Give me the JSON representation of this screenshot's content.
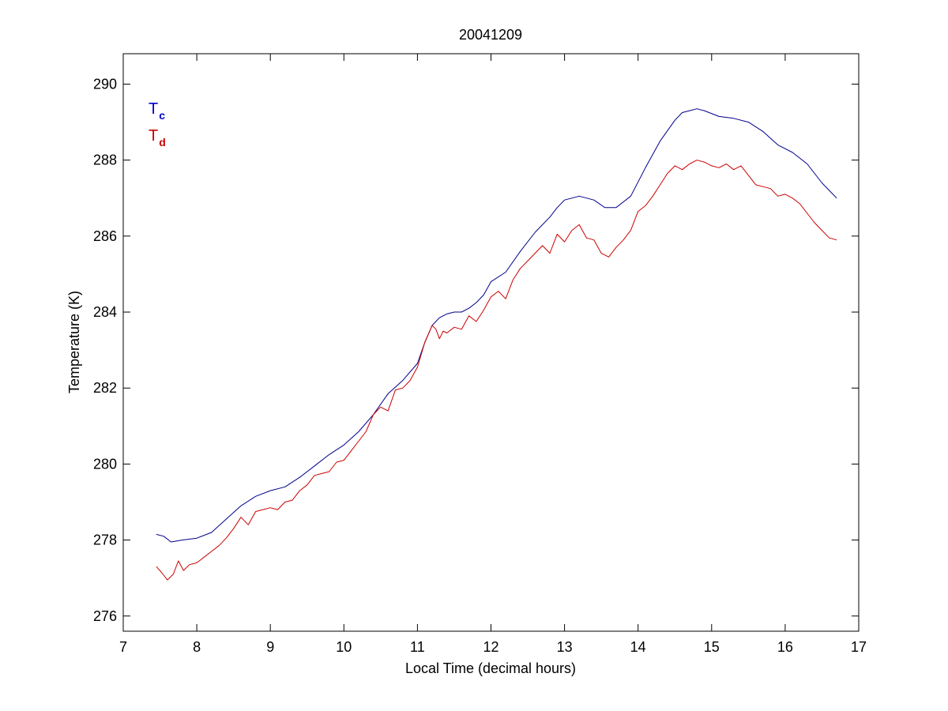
{
  "chart_data": {
    "type": "line",
    "title": "20041209",
    "xlabel": "Local Time (decimal hours)",
    "ylabel": "Temperature (K)",
    "xlim": [
      7,
      17
    ],
    "ylim": [
      275.6,
      290.8
    ],
    "xticks": [
      7,
      8,
      9,
      10,
      11,
      12,
      13,
      14,
      15,
      16,
      17
    ],
    "yticks": [
      276,
      278,
      280,
      282,
      284,
      286,
      288,
      290
    ],
    "grid": false,
    "legend": {
      "placement": "top-left",
      "entries": [
        {
          "main": "T",
          "sub": "c",
          "color": "#0000cc"
        },
        {
          "main": "T",
          "sub": "d",
          "color": "#cc0000"
        }
      ]
    },
    "series": [
      {
        "color": "#00008b",
        "x": [
          7.45,
          7.55,
          7.65,
          7.8,
          8.0,
          8.2,
          8.4,
          8.6,
          8.8,
          9.0,
          9.2,
          9.4,
          9.6,
          9.8,
          10.0,
          10.2,
          10.4,
          10.6,
          10.8,
          11.0,
          11.1,
          11.2,
          11.3,
          11.4,
          11.5,
          11.6,
          11.7,
          11.8,
          11.9,
          12.0,
          12.2,
          12.4,
          12.6,
          12.8,
          12.9,
          13.0,
          13.2,
          13.4,
          13.55,
          13.7,
          13.9,
          14.1,
          14.3,
          14.5,
          14.6,
          14.7,
          14.8,
          14.9,
          15.1,
          15.3,
          15.5,
          15.7,
          15.9,
          16.1,
          16.3,
          16.5,
          16.7
        ],
        "y": [
          278.15,
          278.1,
          277.95,
          278.0,
          278.05,
          278.2,
          278.55,
          278.9,
          279.15,
          279.3,
          279.4,
          279.65,
          279.95,
          280.25,
          280.5,
          280.85,
          281.3,
          281.85,
          282.2,
          282.65,
          283.2,
          283.65,
          283.85,
          283.95,
          284.0,
          284.0,
          284.1,
          284.25,
          284.45,
          284.8,
          285.05,
          285.6,
          286.1,
          286.5,
          286.75,
          286.95,
          287.05,
          286.95,
          286.75,
          286.75,
          287.05,
          287.8,
          288.5,
          289.05,
          289.25,
          289.3,
          289.35,
          289.3,
          289.15,
          289.1,
          289.0,
          288.75,
          288.4,
          288.2,
          287.9,
          287.4,
          287.0
        ]
      },
      {
        "color": "#cc0000",
        "x": [
          7.45,
          7.52,
          7.6,
          7.68,
          7.75,
          7.82,
          7.9,
          8.0,
          8.1,
          8.2,
          8.3,
          8.4,
          8.5,
          8.6,
          8.7,
          8.8,
          8.9,
          9.0,
          9.1,
          9.2,
          9.3,
          9.4,
          9.5,
          9.6,
          9.7,
          9.8,
          9.9,
          10.0,
          10.1,
          10.2,
          10.3,
          10.4,
          10.5,
          10.6,
          10.7,
          10.8,
          10.9,
          11.0,
          11.1,
          11.2,
          11.25,
          11.3,
          11.35,
          11.4,
          11.5,
          11.6,
          11.7,
          11.8,
          11.9,
          12.0,
          12.1,
          12.2,
          12.3,
          12.4,
          12.5,
          12.6,
          12.7,
          12.8,
          12.9,
          13.0,
          13.1,
          13.2,
          13.3,
          13.4,
          13.5,
          13.6,
          13.7,
          13.8,
          13.9,
          14.0,
          14.1,
          14.2,
          14.3,
          14.4,
          14.5,
          14.6,
          14.7,
          14.8,
          14.9,
          15.0,
          15.1,
          15.2,
          15.3,
          15.4,
          15.5,
          15.6,
          15.7,
          15.8,
          15.9,
          16.0,
          16.1,
          16.2,
          16.3,
          16.4,
          16.5,
          16.6,
          16.7
        ],
        "y": [
          277.3,
          277.15,
          276.95,
          277.1,
          277.45,
          277.2,
          277.35,
          277.4,
          277.55,
          277.7,
          277.85,
          278.05,
          278.3,
          278.6,
          278.4,
          278.75,
          278.8,
          278.85,
          278.8,
          279.0,
          279.05,
          279.3,
          279.45,
          279.7,
          279.75,
          279.8,
          280.05,
          280.1,
          280.35,
          280.6,
          280.85,
          281.3,
          281.5,
          281.4,
          281.95,
          282.0,
          282.2,
          282.55,
          283.2,
          283.65,
          283.55,
          283.3,
          283.5,
          283.45,
          283.6,
          283.55,
          283.9,
          283.75,
          284.05,
          284.4,
          284.55,
          284.35,
          284.85,
          285.15,
          285.35,
          285.55,
          285.75,
          285.55,
          286.05,
          285.85,
          286.15,
          286.3,
          285.95,
          285.9,
          285.55,
          285.45,
          285.7,
          285.9,
          286.15,
          286.65,
          286.8,
          287.05,
          287.35,
          287.65,
          287.85,
          287.75,
          287.9,
          288.0,
          287.95,
          287.85,
          287.8,
          287.9,
          287.75,
          287.85,
          287.6,
          287.35,
          287.3,
          287.25,
          287.05,
          287.1,
          287.0,
          286.85,
          286.6,
          286.35,
          286.15,
          285.95,
          285.9
        ]
      }
    ]
  }
}
